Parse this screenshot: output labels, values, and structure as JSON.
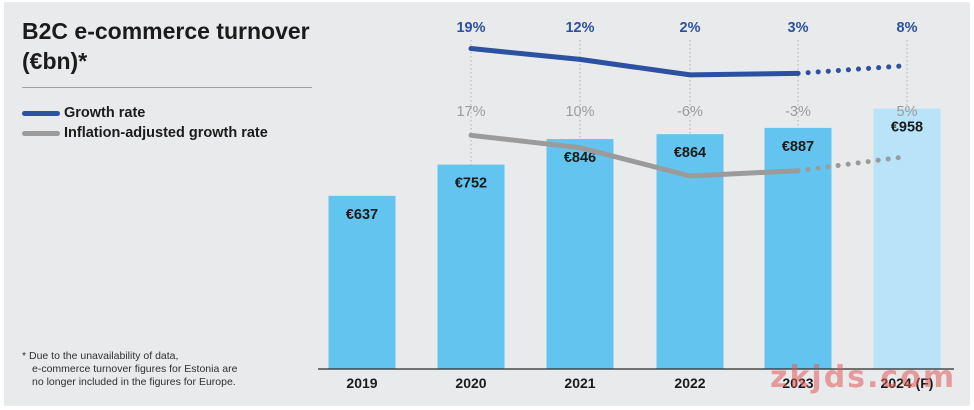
{
  "chart_data": {
    "type": "bar",
    "title": "B2C e-commerce turnover (€bn)*",
    "categories": [
      "2019",
      "2020",
      "2021",
      "2022",
      "2023",
      "2024 (F)"
    ],
    "values": [
      637,
      752,
      846,
      864,
      887,
      958
    ],
    "value_labels": [
      "€637",
      "€752",
      "€846",
      "€864",
      "€887",
      "€958"
    ],
    "forecast_index": 5,
    "ylim": [
      0,
      1100
    ],
    "xlabel": "",
    "ylabel": "",
    "grid": false,
    "legend_position": "left",
    "colors": {
      "bar": "#62c4ef",
      "bar_forecast": "#b8e3f9"
    },
    "lines": [
      {
        "name": "Growth rate",
        "color": "#2b51a1",
        "categories": [
          "2020",
          "2021",
          "2022",
          "2023",
          "2024 (F)"
        ],
        "values": [
          19,
          12,
          2,
          3,
          8
        ],
        "labels": [
          "19%",
          "12%",
          "2%",
          "3%",
          "8%"
        ],
        "forecast_from": "2023"
      },
      {
        "name": "Inflation-adjusted growth rate",
        "color": "#9b9b9b",
        "categories": [
          "2020",
          "2021",
          "2022",
          "2023",
          "2024 (F)"
        ],
        "values": [
          17,
          10,
          -6,
          -3,
          5
        ],
        "labels": [
          "17%",
          "10%",
          "-6%",
          "-3%",
          "5%"
        ],
        "forecast_from": "2023"
      }
    ]
  },
  "legend": {
    "growth_rate": "Growth rate",
    "inflation_adjusted": "Inflation-adjusted growth rate"
  },
  "footnote": {
    "line1": "* Due to the unavailability of data,",
    "line2": "e-commerce turnover figures for Estonia are",
    "line3": "no longer included in the figures for Europe."
  },
  "watermark": "zkjds.com"
}
